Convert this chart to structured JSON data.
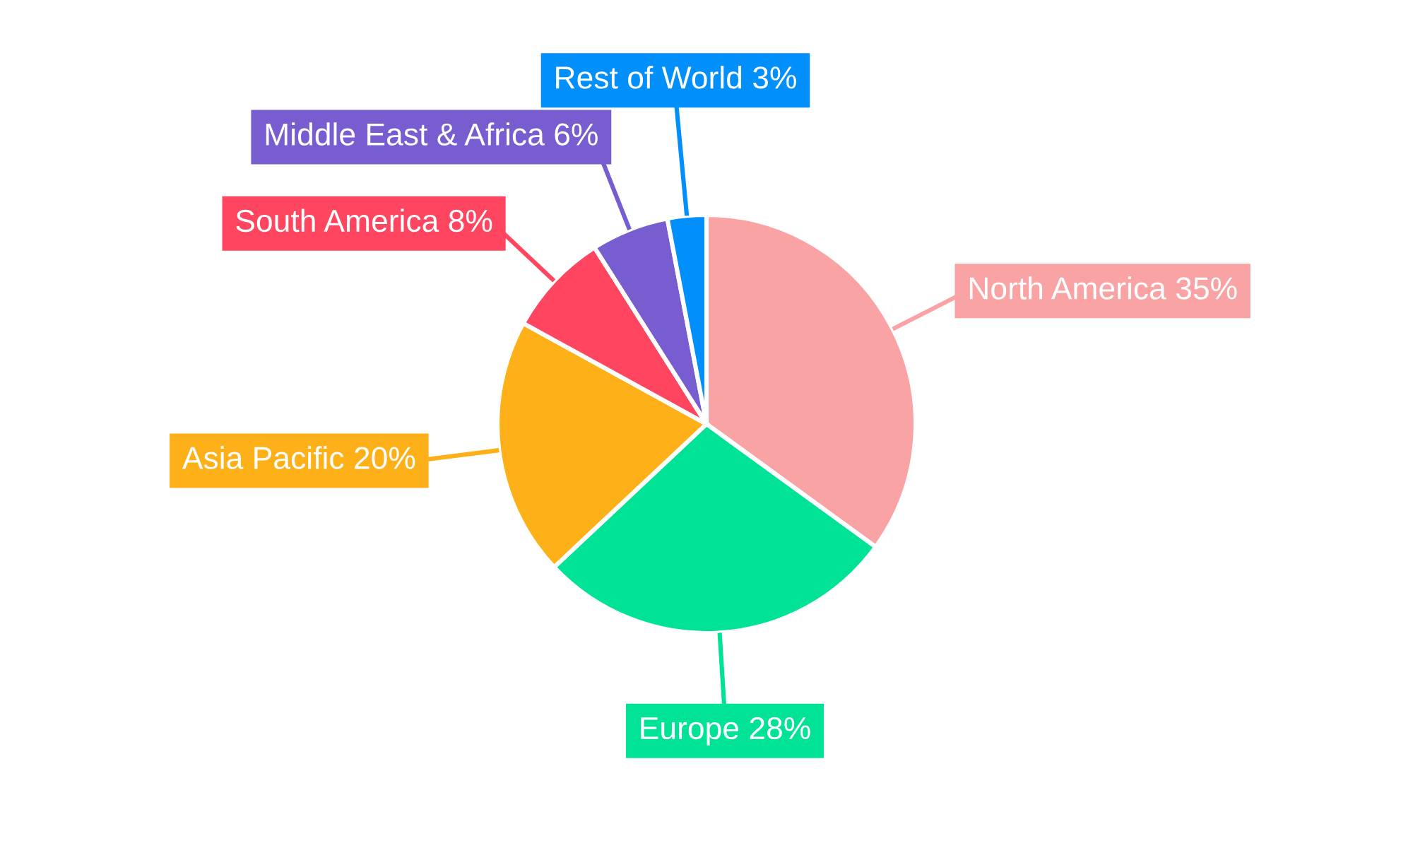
{
  "chart_data": {
    "type": "pie",
    "categories": [
      "North America",
      "Europe",
      "Asia Pacific",
      "South America",
      "Middle East & Africa",
      "Rest of World"
    ],
    "values": [
      35,
      28,
      20,
      8,
      6,
      3
    ],
    "value_labels": [
      "35%",
      "28%",
      "20%",
      "8%",
      "6%",
      "3%"
    ],
    "colors": [
      "#f9a3a4",
      "#00e396",
      "#feb019",
      "#ff4560",
      "#775dd0",
      "#008ffb"
    ]
  }
}
